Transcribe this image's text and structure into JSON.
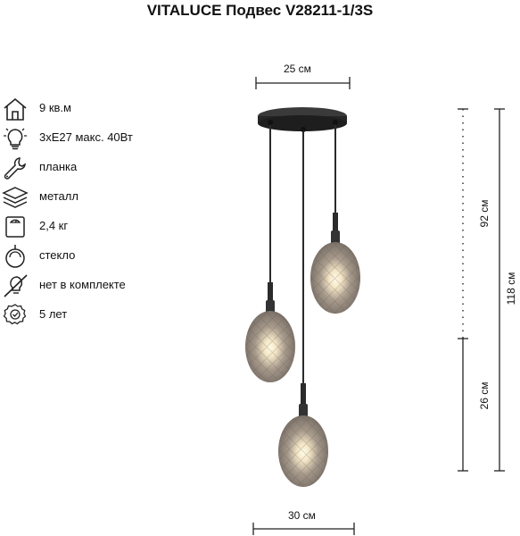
{
  "title": "VITALUCE Подвес V28211-1/3S",
  "specs": [
    {
      "icon": "house-icon",
      "text": "9 кв.м"
    },
    {
      "icon": "lightbulb-icon",
      "text": "3хE27 макс. 40Вт"
    },
    {
      "icon": "wrench-icon",
      "text": "планка"
    },
    {
      "icon": "layers-icon",
      "text": "металл"
    },
    {
      "icon": "scale-icon",
      "text": "2,4 кг"
    },
    {
      "icon": "shade-icon",
      "text": "стекло"
    },
    {
      "icon": "no-bulb-icon",
      "text": "нет в комплекте"
    },
    {
      "icon": "warranty-badge-icon",
      "text": "5 лет"
    }
  ],
  "dimensions": {
    "top_width": "25 см",
    "bottom_width": "30 см",
    "upper_height": "92 см",
    "lower_height": "26 см",
    "total_height": "118 см"
  },
  "colors": {
    "metal": "#2b2b2b",
    "shade": "#8a8079",
    "glow": "#fff3d6"
  }
}
